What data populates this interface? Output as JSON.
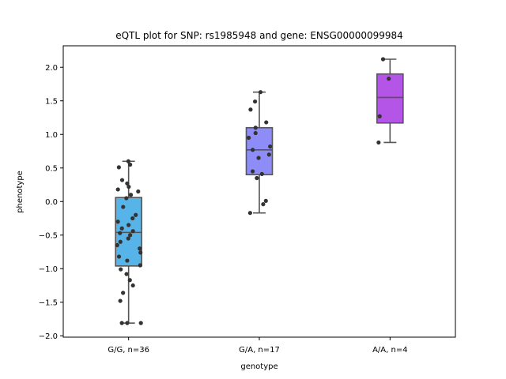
{
  "chart_data": {
    "type": "box",
    "title": "eQTL plot for SNP: rs1985948 and gene: ENSG00000099984",
    "xlabel": "genotype",
    "ylabel": "phenotype",
    "ylim": [
      -2.02,
      2.32
    ],
    "yticks": [
      -2.0,
      -1.5,
      -1.0,
      -0.5,
      0.0,
      0.5,
      1.0,
      1.5,
      2.0
    ],
    "ytick_labels": [
      "−2.0",
      "−1.5",
      "−1.0",
      "−0.5",
      "0.0",
      "0.5",
      "1.0",
      "1.5",
      "2.0"
    ],
    "grid": false,
    "categories": [
      "G/G, n=36",
      "G/A, n=17",
      "A/A, n=4"
    ],
    "boxes": [
      {
        "category": "G/G, n=36",
        "color": "#56b4e9",
        "q1": -0.96,
        "median": -0.46,
        "q3": 0.06,
        "whisker_low": -1.81,
        "whisker_high": 0.6,
        "points": [
          0.6,
          0.55,
          0.51,
          0.32,
          0.27,
          0.22,
          0.18,
          0.15,
          0.1,
          0.05,
          -0.08,
          -0.2,
          -0.25,
          -0.3,
          -0.35,
          -0.4,
          -0.44,
          -0.47,
          -0.5,
          -0.55,
          -0.6,
          -0.65,
          -0.7,
          -0.76,
          -0.82,
          -0.88,
          -0.95,
          -1.01,
          -1.08,
          -1.17,
          -1.25,
          -1.36,
          -1.48,
          -1.81,
          -1.81,
          -1.81
        ]
      },
      {
        "category": "G/A, n=17",
        "color": "#8e8cf7",
        "q1": 0.4,
        "median": 0.77,
        "q3": 1.1,
        "whisker_low": -0.17,
        "whisker_high": 1.63,
        "points": [
          1.63,
          1.49,
          1.37,
          1.18,
          1.1,
          1.02,
          0.95,
          0.82,
          0.77,
          0.7,
          0.65,
          0.45,
          0.41,
          0.35,
          0.01,
          -0.04,
          -0.17
        ]
      },
      {
        "category": "A/A, n=4",
        "color": "#b555e8",
        "q1": 1.17,
        "median": 1.55,
        "q3": 1.9,
        "whisker_low": 0.88,
        "whisker_high": 2.12,
        "points": [
          2.12,
          1.83,
          1.27,
          0.88
        ]
      }
    ]
  }
}
